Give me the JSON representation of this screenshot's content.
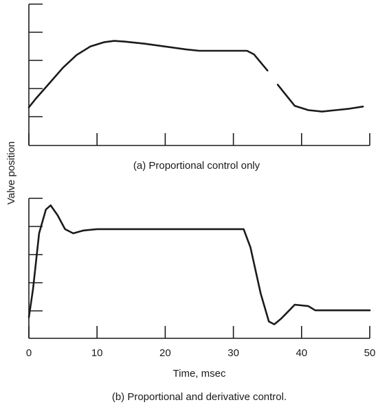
{
  "chart_data": [
    {
      "type": "line",
      "caption": "(a) Proportional control only",
      "ylabel": "Valve position",
      "xlim": [
        0,
        50
      ],
      "x_ticks": [
        0,
        10,
        20,
        30,
        40,
        50
      ],
      "x_tick_labels_shown": false,
      "y_tick_labels_shown": false,
      "grid": false,
      "series": [
        {
          "x": [
            0,
            1,
            3,
            5,
            7,
            9,
            11,
            12.5,
            14,
            17,
            20,
            23,
            25,
            28,
            30,
            32,
            33,
            35,
            36.5,
            37.5,
            39,
            41,
            43,
            45,
            47,
            49
          ],
          "y": [
            0.27,
            0.33,
            0.44,
            0.55,
            0.64,
            0.7,
            0.73,
            0.74,
            0.735,
            0.72,
            0.7,
            0.68,
            0.67,
            0.67,
            0.67,
            0.67,
            0.645,
            0.53,
            0.43,
            0.37,
            0.28,
            0.25,
            0.24,
            0.25,
            0.26,
            0.275
          ],
          "segments": [
            [
              0,
              17
            ],
            [
              18,
              25
            ]
          ]
        }
      ]
    },
    {
      "type": "line",
      "caption": "(b) Proportional and derivative control.",
      "xlabel": "Time, msec",
      "ylabel": "Valve position",
      "xlim": [
        0,
        50
      ],
      "x_ticks": [
        0,
        10,
        20,
        30,
        40,
        50
      ],
      "x_tick_labels": [
        "0",
        "10",
        "20",
        "30",
        "40",
        "50"
      ],
      "y_tick_labels_shown": false,
      "grid": false,
      "series": [
        {
          "x": [
            0,
            0.6,
            1.5,
            2.5,
            3.2,
            4.2,
            5.3,
            6.5,
            8,
            10,
            12,
            15,
            20,
            25,
            29,
            31.5,
            32.5,
            34,
            35.2,
            36,
            37,
            38,
            39,
            41,
            42,
            43,
            46,
            50
          ],
          "y": [
            0.15,
            0.35,
            0.75,
            0.92,
            0.95,
            0.88,
            0.78,
            0.75,
            0.77,
            0.78,
            0.78,
            0.78,
            0.78,
            0.78,
            0.78,
            0.78,
            0.65,
            0.32,
            0.12,
            0.1,
            0.14,
            0.19,
            0.24,
            0.23,
            0.2,
            0.2,
            0.2,
            0.2
          ],
          "segments": [
            [
              0,
              27
            ]
          ]
        }
      ]
    }
  ]
}
